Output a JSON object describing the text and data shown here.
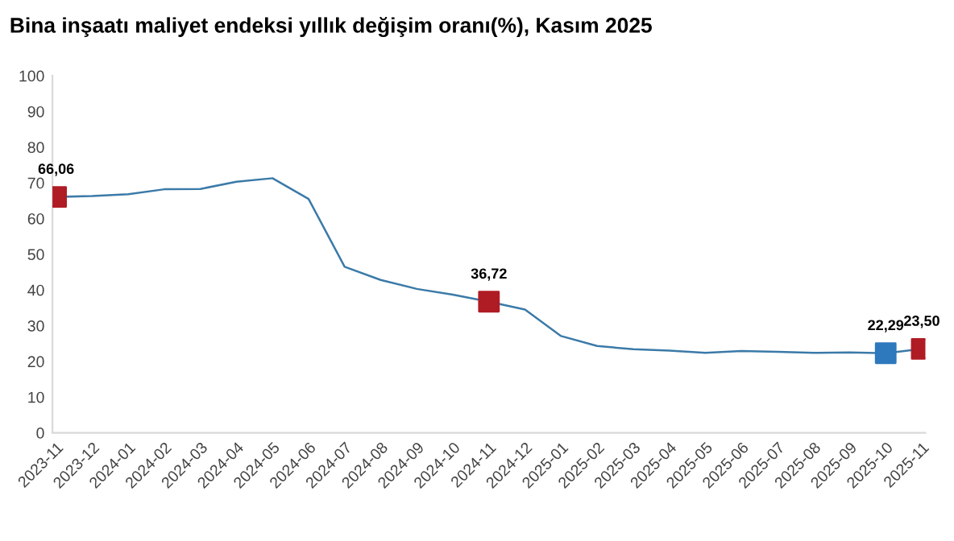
{
  "chart_data": {
    "type": "line",
    "title": "Bina inşaatı maliyet endeksi yıllık değişim oranı(%), Kasım 2025",
    "categories": [
      "2023-11",
      "2023-12",
      "2024-01",
      "2024-02",
      "2024-03",
      "2024-04",
      "2024-05",
      "2024-06",
      "2024-07",
      "2024-08",
      "2024-09",
      "2024-10",
      "2024-11",
      "2024-12",
      "2025-01",
      "2025-02",
      "2025-03",
      "2025-04",
      "2025-05",
      "2025-06",
      "2025-07",
      "2025-08",
      "2025-09",
      "2025-10",
      "2025-11"
    ],
    "ylim": [
      0,
      100
    ],
    "yticks": [
      0,
      10,
      20,
      30,
      40,
      50,
      60,
      70,
      80,
      90,
      100
    ],
    "grid": false,
    "legend": false,
    "series": [
      {
        "color": "#3b7aa8",
        "marker": "none",
        "line_style": "solid",
        "values": [
          66.06,
          66.3,
          66.8,
          68.2,
          68.3,
          70.3,
          71.3,
          65.5,
          46.5,
          42.8,
          40.3,
          38.7,
          36.72,
          34.5,
          27.1,
          24.3,
          23.4,
          23.0,
          22.4,
          22.9,
          22.7,
          22.4,
          22.5,
          22.29,
          23.5
        ]
      },
      {
        "type": "scatter",
        "marker": "square",
        "values": [
          66.06,
          null,
          null,
          null,
          null,
          null,
          null,
          null,
          null,
          null,
          null,
          null,
          36.72,
          null,
          null,
          null,
          null,
          null,
          null,
          null,
          null,
          null,
          null,
          22.29,
          23.5
        ],
        "colors": [
          "#b01c24",
          null,
          null,
          null,
          null,
          null,
          null,
          null,
          null,
          null,
          null,
          null,
          "#b01c24",
          null,
          null,
          null,
          null,
          null,
          null,
          null,
          null,
          null,
          null,
          "#2e78bd",
          "#b01c24"
        ],
        "value_labels": [
          "66,06",
          null,
          null,
          null,
          null,
          null,
          null,
          null,
          null,
          null,
          null,
          null,
          "36,72",
          null,
          null,
          null,
          null,
          null,
          null,
          null,
          null,
          null,
          null,
          "22,29",
          "23,50"
        ]
      }
    ]
  }
}
